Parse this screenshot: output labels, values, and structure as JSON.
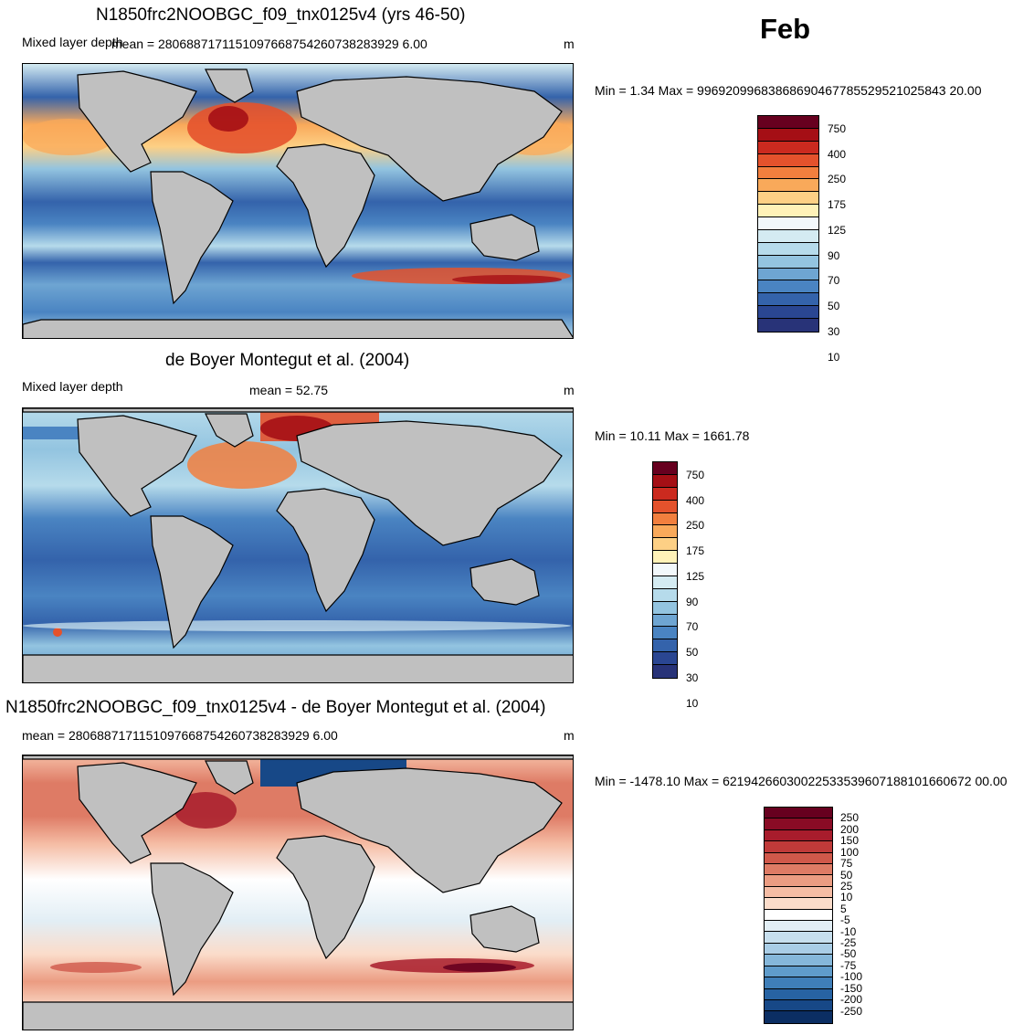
{
  "month_label": "Feb",
  "panels": [
    {
      "title": "N1850frc2NOOBGC_f09_tnx0125v4 (yrs 46-50)",
      "variable": "Mixed layer depth",
      "mean_text": "mean = 2806887171151097668754260738283929 6.00",
      "units": "m",
      "minmax_text": "Min =   1.34 Max = 99692099683868690467785529521025843 20.00",
      "colorbar_labels": [
        "750",
        "400",
        "250",
        "175",
        "125",
        "90",
        "70",
        "50",
        "30",
        "10"
      ],
      "colors": [
        "#67001f",
        "#a50f15",
        "#cb2a1f",
        "#e4522c",
        "#f27f3e",
        "#f9a95a",
        "#fdd085",
        "#fff2b8",
        "#f2f8fb",
        "#d4ebf2",
        "#b6dbeb",
        "#93c4e0",
        "#6ea5d2",
        "#4a84c2",
        "#3463ab",
        "#2a4692",
        "#283378"
      ],
      "palette": "warm-over-cool"
    },
    {
      "title": "de Boyer Montegut et al. (2004)",
      "variable": "Mixed layer depth",
      "mean_text": "mean =  52.75",
      "units": "m",
      "minmax_text": "Min =  10.11 Max = 1661.78",
      "colorbar_labels": [
        "750",
        "400",
        "250",
        "175",
        "125",
        "90",
        "70",
        "50",
        "30",
        "10"
      ],
      "colors": [
        "#67001f",
        "#a50f15",
        "#cb2a1f",
        "#e4522c",
        "#f27f3e",
        "#f9a95a",
        "#fdd085",
        "#fff2b8",
        "#f2f8fb",
        "#d4ebf2",
        "#b6dbeb",
        "#93c4e0",
        "#6ea5d2",
        "#4a84c2",
        "#3463ab",
        "#2a4692",
        "#283378"
      ],
      "palette": "warm-over-cool"
    },
    {
      "title": "N1850frc2NOOBGC_f09_tnx0125v4 - de Boyer Montegut et al. (2004)",
      "variable": "",
      "mean_text": "mean = 2806887171151097668754260738283929 6.00",
      "units": "m",
      "minmax_text": "Min = -1478.10 Max = 62194266030022533539607188101660672 00.00",
      "colorbar_labels": [
        "250",
        "200",
        "150",
        "100",
        "75",
        "50",
        "25",
        "10",
        "5",
        "-5",
        "-10",
        "-25",
        "-50",
        "-75",
        "-100",
        "-150",
        "-200",
        "-250"
      ],
      "colors": [
        "#67001f",
        "#8a0b25",
        "#a81c2c",
        "#c03a39",
        "#d0584a",
        "#de7b65",
        "#eb9c82",
        "#f5bca4",
        "#fbdcca",
        "#ffffff",
        "#e2eef5",
        "#c7dfee",
        "#a9cde6",
        "#85b7da",
        "#5f9ccb",
        "#3f7fb9",
        "#2763a3",
        "#174887",
        "#0b2e63"
      ],
      "palette": "diverging"
    }
  ]
}
